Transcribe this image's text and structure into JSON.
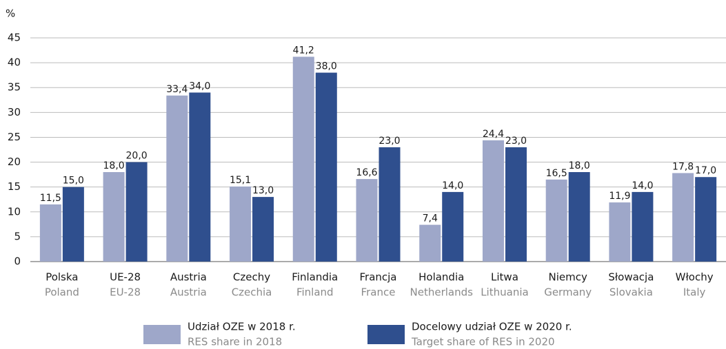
{
  "chart_data": {
    "type": "bar",
    "y_label": "%",
    "categories": [
      "Polska",
      "UE-28",
      "Austria",
      "Czechy",
      "Finlandia",
      "Francja",
      "Holandia",
      "Litwa",
      "Niemcy",
      "Słowacja",
      "Włochy"
    ],
    "categories_en": [
      "Poland",
      "EU-28",
      "Austria",
      "Czechia",
      "Finland",
      "France",
      "Netherlands",
      "Lithuania",
      "Germany",
      "Slovakia",
      "Italy"
    ],
    "series": [
      {
        "name": "Udział OZE w 2018 r.",
        "name_en": "RES share in 2018",
        "color": "#9ea7c9",
        "values": [
          11.5,
          18.0,
          33.4,
          15.1,
          41.2,
          16.6,
          7.4,
          24.4,
          16.5,
          11.9,
          17.8
        ],
        "value_labels": [
          "11,5",
          "18,0",
          "33,4",
          "15,1",
          "41,2",
          "16,6",
          "7,4",
          "24,4",
          "16,5",
          "11,9",
          "17,8"
        ]
      },
      {
        "name": "Docelowy udział OZE w 2020 r.",
        "name_en": "Target share of RES in 2020",
        "color": "#2f4f8e",
        "values": [
          15.0,
          20.0,
          34.0,
          13.0,
          38.0,
          23.0,
          14.0,
          23.0,
          18.0,
          14.0,
          17.0
        ],
        "value_labels": [
          "15,0",
          "20,0",
          "34,0",
          "13,0",
          "38,0",
          "23,0",
          "14,0",
          "23,0",
          "18,0",
          "14,0",
          "17,0"
        ]
      }
    ],
    "ylim": [
      0,
      45
    ],
    "yticks": [
      0,
      5,
      10,
      15,
      20,
      25,
      30,
      35,
      40,
      45
    ],
    "grid": true
  }
}
